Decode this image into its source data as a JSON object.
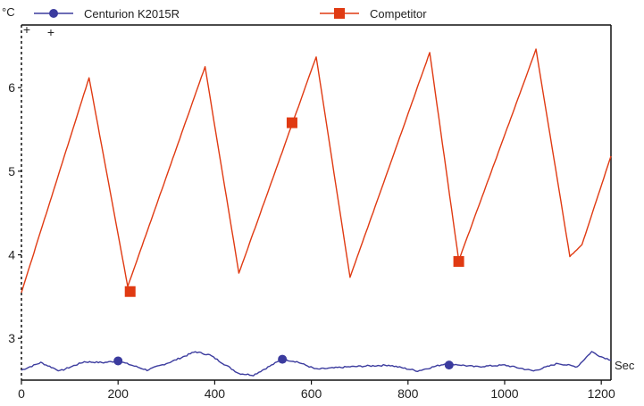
{
  "chart_data": {
    "type": "line",
    "y_unit": "°C",
    "x_unit": "Sec",
    "xlim": [
      0,
      1220
    ],
    "ylim": [
      2.5,
      6.75
    ],
    "x_ticks": [
      "0",
      "200",
      "400",
      "600",
      "800",
      "1000",
      "1200"
    ],
    "y_ticks": [
      "3",
      "4",
      "5",
      "6"
    ],
    "grid": false,
    "legend_position": "top",
    "series": [
      {
        "name": "Centurion K2015R",
        "color": "#3b3b9e",
        "marker": "circle",
        "points": [
          [
            0,
            2.62
          ],
          [
            40,
            2.71
          ],
          [
            80,
            2.61
          ],
          [
            130,
            2.72
          ],
          [
            170,
            2.71
          ],
          [
            200,
            2.73
          ],
          [
            260,
            2.62
          ],
          [
            310,
            2.72
          ],
          [
            360,
            2.84
          ],
          [
            390,
            2.8
          ],
          [
            450,
            2.58
          ],
          [
            480,
            2.56
          ],
          [
            540,
            2.75
          ],
          [
            570,
            2.72
          ],
          [
            610,
            2.63
          ],
          [
            680,
            2.66
          ],
          [
            760,
            2.68
          ],
          [
            820,
            2.61
          ],
          [
            880,
            2.7
          ],
          [
            940,
            2.66
          ],
          [
            1000,
            2.68
          ],
          [
            1060,
            2.61
          ],
          [
            1110,
            2.7
          ],
          [
            1150,
            2.66
          ],
          [
            1180,
            2.84
          ],
          [
            1200,
            2.78
          ],
          [
            1220,
            2.74
          ]
        ],
        "marker_points": [
          [
            200,
            2.73
          ],
          [
            540,
            2.75
          ],
          [
            885,
            2.68
          ]
        ]
      },
      {
        "name": "Competitor",
        "color": "#e03a12",
        "marker": "square",
        "points": [
          [
            0,
            3.55
          ],
          [
            140,
            6.12
          ],
          [
            220,
            3.62
          ],
          [
            380,
            6.25
          ],
          [
            450,
            3.78
          ],
          [
            610,
            6.37
          ],
          [
            680,
            3.73
          ],
          [
            845,
            6.42
          ],
          [
            905,
            3.93
          ],
          [
            1065,
            6.46
          ],
          [
            1135,
            3.98
          ],
          [
            1160,
            4.12
          ],
          [
            1220,
            5.18
          ]
        ],
        "marker_points": [
          [
            225,
            3.56
          ],
          [
            560,
            5.58
          ],
          [
            905,
            3.92
          ]
        ]
      }
    ]
  }
}
